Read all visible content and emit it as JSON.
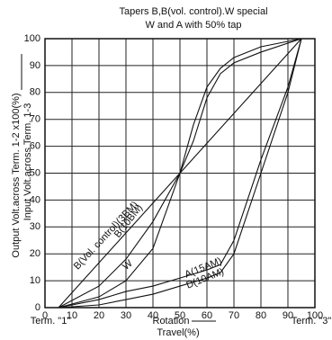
{
  "chart_data": {
    "type": "line",
    "title": "Tapers B,B(vol. control).W special",
    "subtitle": "W and A with 50% tap",
    "y_label": "Output Volt.across Term. 1-2 x100(%)",
    "y_label_2": "Input Volt.across Term. 1-3",
    "x_label": "Rotation",
    "x_label_2": "Travel(%)",
    "x_left_label": "Term. \"1\"",
    "x_right_label": "Term. \"3\"",
    "xlim": [
      0,
      100
    ],
    "xticks": [
      0,
      10,
      20,
      30,
      40,
      50,
      60,
      70,
      80,
      90,
      100
    ],
    "ylim": [
      0,
      100
    ],
    "yticks": [
      0,
      10,
      20,
      30,
      40,
      50,
      60,
      70,
      80,
      90,
      100
    ],
    "grid": true,
    "series": [
      {
        "name": "B(10BM)",
        "color": "#111111",
        "x": [
          5,
          50,
          95
        ],
        "values": [
          0,
          50,
          100
        ]
      },
      {
        "name": "B(Vol. control)(3BM)",
        "color": "#111111",
        "x": [
          5,
          20,
          30,
          40,
          50,
          55,
          60,
          65,
          70,
          80,
          95
        ],
        "values": [
          0,
          8,
          18,
          32,
          50,
          62,
          78,
          87,
          91,
          95,
          100
        ]
      },
      {
        "name": "W",
        "color": "#111111",
        "x": [
          5,
          20,
          30,
          40,
          50,
          55,
          60,
          65,
          70,
          80,
          95
        ],
        "values": [
          0,
          4,
          10,
          22,
          50,
          68,
          82,
          89,
          93,
          97,
          100
        ]
      },
      {
        "name": "A(15AM)",
        "color": "#111111",
        "x": [
          5,
          20,
          30,
          40,
          50,
          60,
          65,
          70,
          75,
          80,
          90,
          95
        ],
        "values": [
          0,
          3,
          6,
          8,
          11,
          14,
          16,
          25,
          40,
          55,
          82,
          100
        ]
      },
      {
        "name": "D(10AM)",
        "color": "#111111",
        "x": [
          5,
          20,
          30,
          40,
          50,
          60,
          65,
          70,
          75,
          80,
          90,
          95
        ],
        "values": [
          0,
          1,
          3,
          5,
          8,
          11,
          13,
          20,
          35,
          50,
          80,
          100
        ]
      }
    ]
  }
}
